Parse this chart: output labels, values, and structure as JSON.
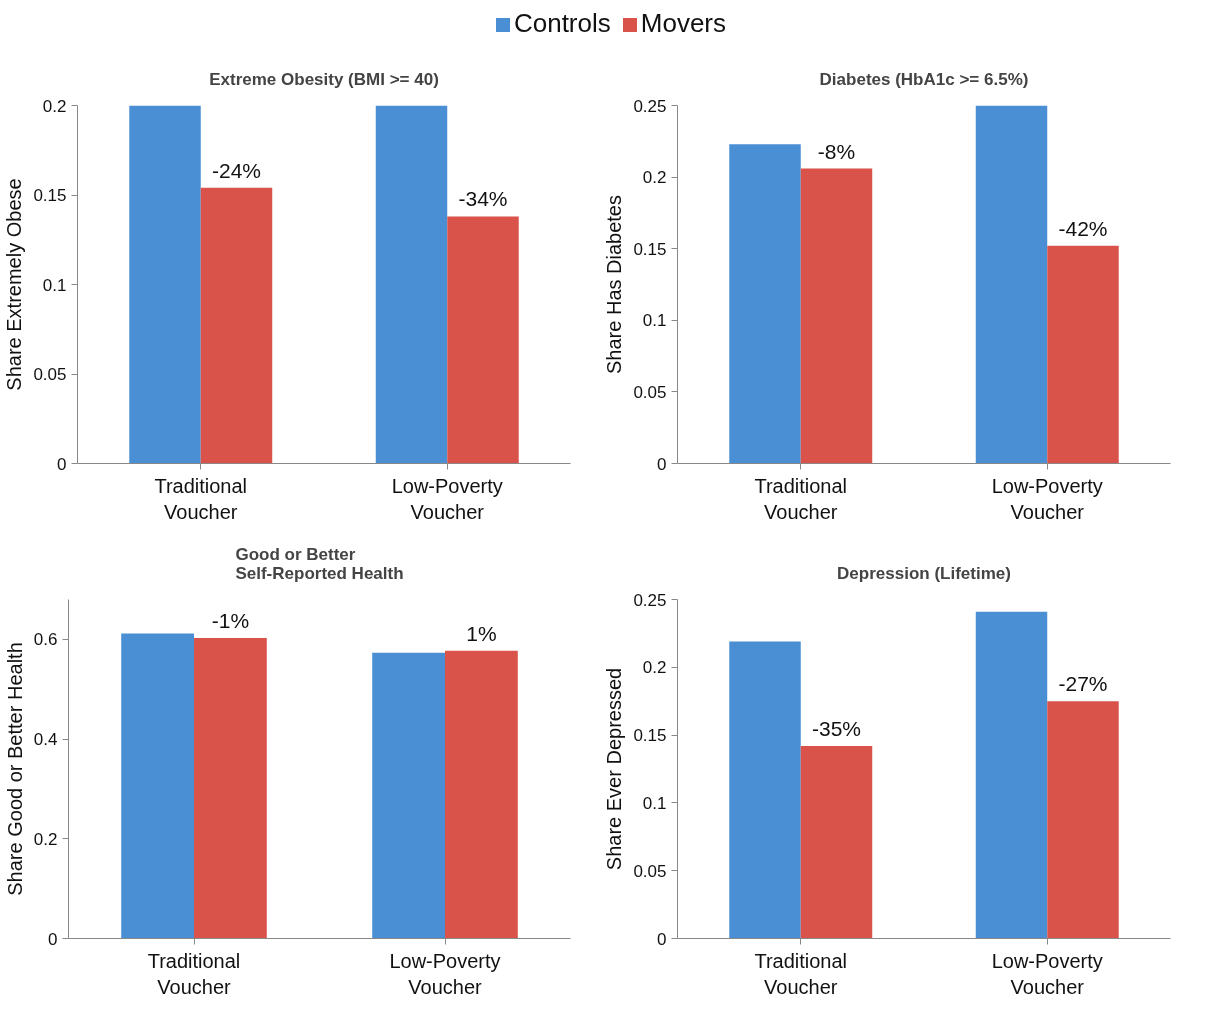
{
  "chart_data": [
    {
      "type": "bar",
      "title": "Extreme Obesity (BMI >= 40)",
      "ylabel": "Share Extremely Obese",
      "categories": [
        "Traditional Voucher",
        "Low-Poverty Voucher"
      ],
      "series": [
        {
          "name": "Controls",
          "color": "#4a8fd4",
          "values": [
            0.2,
            0.2
          ]
        },
        {
          "name": "Movers",
          "color": "#d9534a",
          "values": [
            0.154,
            0.138
          ]
        }
      ],
      "annotations": [
        {
          "text": "-24%",
          "x": "Traditional Voucher",
          "y": 0.154
        },
        {
          "text": "-34%",
          "x": "Low-Poverty Voucher",
          "y": 0.138
        }
      ],
      "ylim": [
        0,
        0.2
      ],
      "yticks": [
        0,
        0.05,
        0.1,
        0.15,
        0.2
      ],
      "legend": "top"
    },
    {
      "type": "bar",
      "title": "Diabetes (HbA1c >= 6.5%)",
      "ylabel": "Share Has Diabetes",
      "categories": [
        "Traditional Voucher",
        "Low-Poverty Voucher"
      ],
      "series": [
        {
          "color": "#4a8fd4",
          "values": [
            0.223,
            0.25
          ]
        },
        {
          "color": "#d9534a",
          "values": [
            0.206,
            0.152
          ]
        }
      ],
      "annotations": [
        {
          "text": "-8%",
          "x": "Traditional Voucher",
          "y": 0.206
        },
        {
          "text": "-42%",
          "x": "Low-Poverty Voucher",
          "y": 0.152
        }
      ],
      "ylim": [
        0,
        0.25
      ],
      "yticks": [
        0,
        0.05,
        0.1,
        0.15,
        0.2,
        0.25
      ]
    },
    {
      "type": "bar",
      "title": "Good or Better\nSelf-Reported Health",
      "ylabel": "Share Good or Better Health",
      "categories": [
        "Traditional Voucher",
        "Low-Poverty Voucher"
      ],
      "series": [
        {
          "color": "#4a8fd4",
          "values": [
            0.612,
            0.573
          ]
        },
        {
          "color": "#d9534a",
          "values": [
            0.603,
            0.577
          ]
        }
      ],
      "annotations": [
        {
          "text": "-1%",
          "x": "Traditional Voucher",
          "y": 0.603
        },
        {
          "text": "1%",
          "x": "Low-Poverty Voucher",
          "y": 0.577
        }
      ],
      "ylim": [
        0,
        0.68
      ],
      "yticks": [
        0,
        0.2,
        0.4,
        0.6
      ]
    },
    {
      "type": "bar",
      "title": "Depression (Lifetime)",
      "ylabel": "Share Ever Depressed",
      "categories": [
        "Traditional Voucher",
        "Low-Poverty Voucher"
      ],
      "series": [
        {
          "color": "#4a8fd4",
          "values": [
            0.219,
            0.241
          ]
        },
        {
          "color": "#d9534a",
          "values": [
            0.142,
            0.175
          ]
        }
      ],
      "annotations": [
        {
          "text": "-35%",
          "x": "Traditional Voucher",
          "y": 0.142
        },
        {
          "text": "-27%",
          "x": "Low-Poverty Voucher",
          "y": 0.175
        }
      ],
      "ylim": [
        0,
        0.25
      ],
      "yticks": [
        0,
        0.05,
        0.1,
        0.15,
        0.2,
        0.25
      ]
    }
  ]
}
